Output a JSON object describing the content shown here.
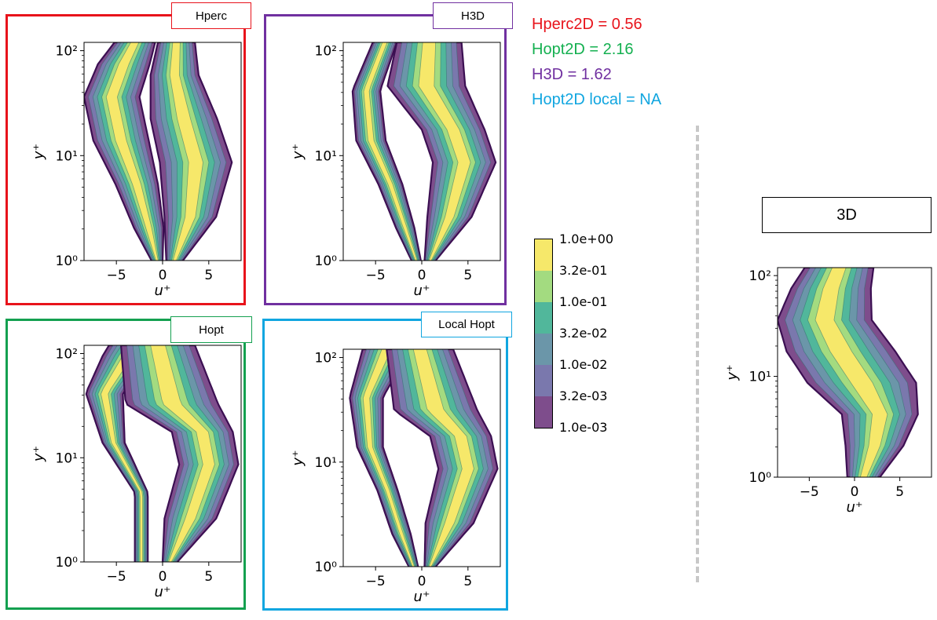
{
  "metrics": [
    {
      "text": "Hperc2D = 0.56",
      "color": "#e8131b"
    },
    {
      "text": "Hopt2D = 2.16",
      "color": "#14b050"
    },
    {
      "text": "H3D = 1.62",
      "color": "#7030a0"
    },
    {
      "text": "Hopt2D local = NA",
      "color": "#11a6e0"
    }
  ],
  "colors": {
    "hperc": "#e8131b",
    "h3d": "#7030a0",
    "hopt": "#14a050",
    "local_hopt": "#11a6e0",
    "levels": [
      "#7e4d8c",
      "#7a78ad",
      "#6b96a9",
      "#51b79b",
      "#a3db80",
      "#f6e86a"
    ]
  },
  "colorbar": {
    "ticks": [
      "1.0e+00",
      "3.2e-01",
      "1.0e-01",
      "3.2e-02",
      "1.0e-02",
      "3.2e-03",
      "1.0e-03"
    ]
  },
  "panel_labels": {
    "hperc": "Hperc",
    "h3d": "H3D",
    "hopt": "Hopt",
    "local_hopt": "Local Hopt",
    "three_d": "3D"
  },
  "chart_data": [
    {
      "type": "heatmap",
      "id": "hperc",
      "title": "Hperc",
      "xlabel": "u⁺",
      "ylabel": "y⁺",
      "xlim": [
        -8.5,
        8.5
      ],
      "ylim": [
        1,
        120
      ],
      "yscale": "log",
      "xticks": [
        "−5",
        "0",
        "5"
      ],
      "yticks": [
        "10⁰",
        "10¹",
        "10²"
      ],
      "contour_levels": [
        0.001,
        0.0032,
        0.01,
        0.032,
        0.1,
        0.32,
        1.0
      ]
    },
    {
      "type": "heatmap",
      "id": "h3d",
      "title": "H3D",
      "xlabel": "u⁺",
      "ylabel": "y⁺",
      "xlim": [
        -8.5,
        8.5
      ],
      "ylim": [
        1,
        120
      ],
      "yscale": "log",
      "xticks": [
        "−5",
        "0",
        "5"
      ],
      "yticks": [
        "10⁰",
        "10¹",
        "10²"
      ],
      "contour_levels": [
        0.001,
        0.0032,
        0.01,
        0.032,
        0.1,
        0.32,
        1.0
      ]
    },
    {
      "type": "heatmap",
      "id": "hopt",
      "title": "Hopt",
      "xlabel": "u⁺",
      "ylabel": "y⁺",
      "xlim": [
        -8.5,
        8.5
      ],
      "ylim": [
        1,
        120
      ],
      "yscale": "log",
      "xticks": [
        "−5",
        "0",
        "5"
      ],
      "yticks": [
        "10⁰",
        "10¹",
        "10²"
      ],
      "contour_levels": [
        0.001,
        0.0032,
        0.01,
        0.032,
        0.1,
        0.32,
        1.0
      ]
    },
    {
      "type": "heatmap",
      "id": "local_hopt",
      "title": "Local Hopt",
      "xlabel": "u⁺",
      "ylabel": "y⁺",
      "xlim": [
        -8.5,
        8.5
      ],
      "ylim": [
        1,
        120
      ],
      "yscale": "log",
      "xticks": [
        "−5",
        "0",
        "5"
      ],
      "yticks": [
        "10⁰",
        "10¹",
        "10²"
      ],
      "contour_levels": [
        0.001,
        0.0032,
        0.01,
        0.032,
        0.1,
        0.32,
        1.0
      ]
    },
    {
      "type": "heatmap",
      "id": "three_d",
      "title": "3D",
      "xlabel": "u⁺",
      "ylabel": "y⁺",
      "xlim": [
        -8.5,
        8.5
      ],
      "ylim": [
        1,
        120
      ],
      "yscale": "log",
      "xticks": [
        "−5",
        "0",
        "5"
      ],
      "yticks": [
        "10⁰",
        "10¹",
        "10²"
      ],
      "contour_levels": [
        0.001,
        0.0032,
        0.01,
        0.032,
        0.1,
        0.32,
        1.0
      ]
    }
  ]
}
